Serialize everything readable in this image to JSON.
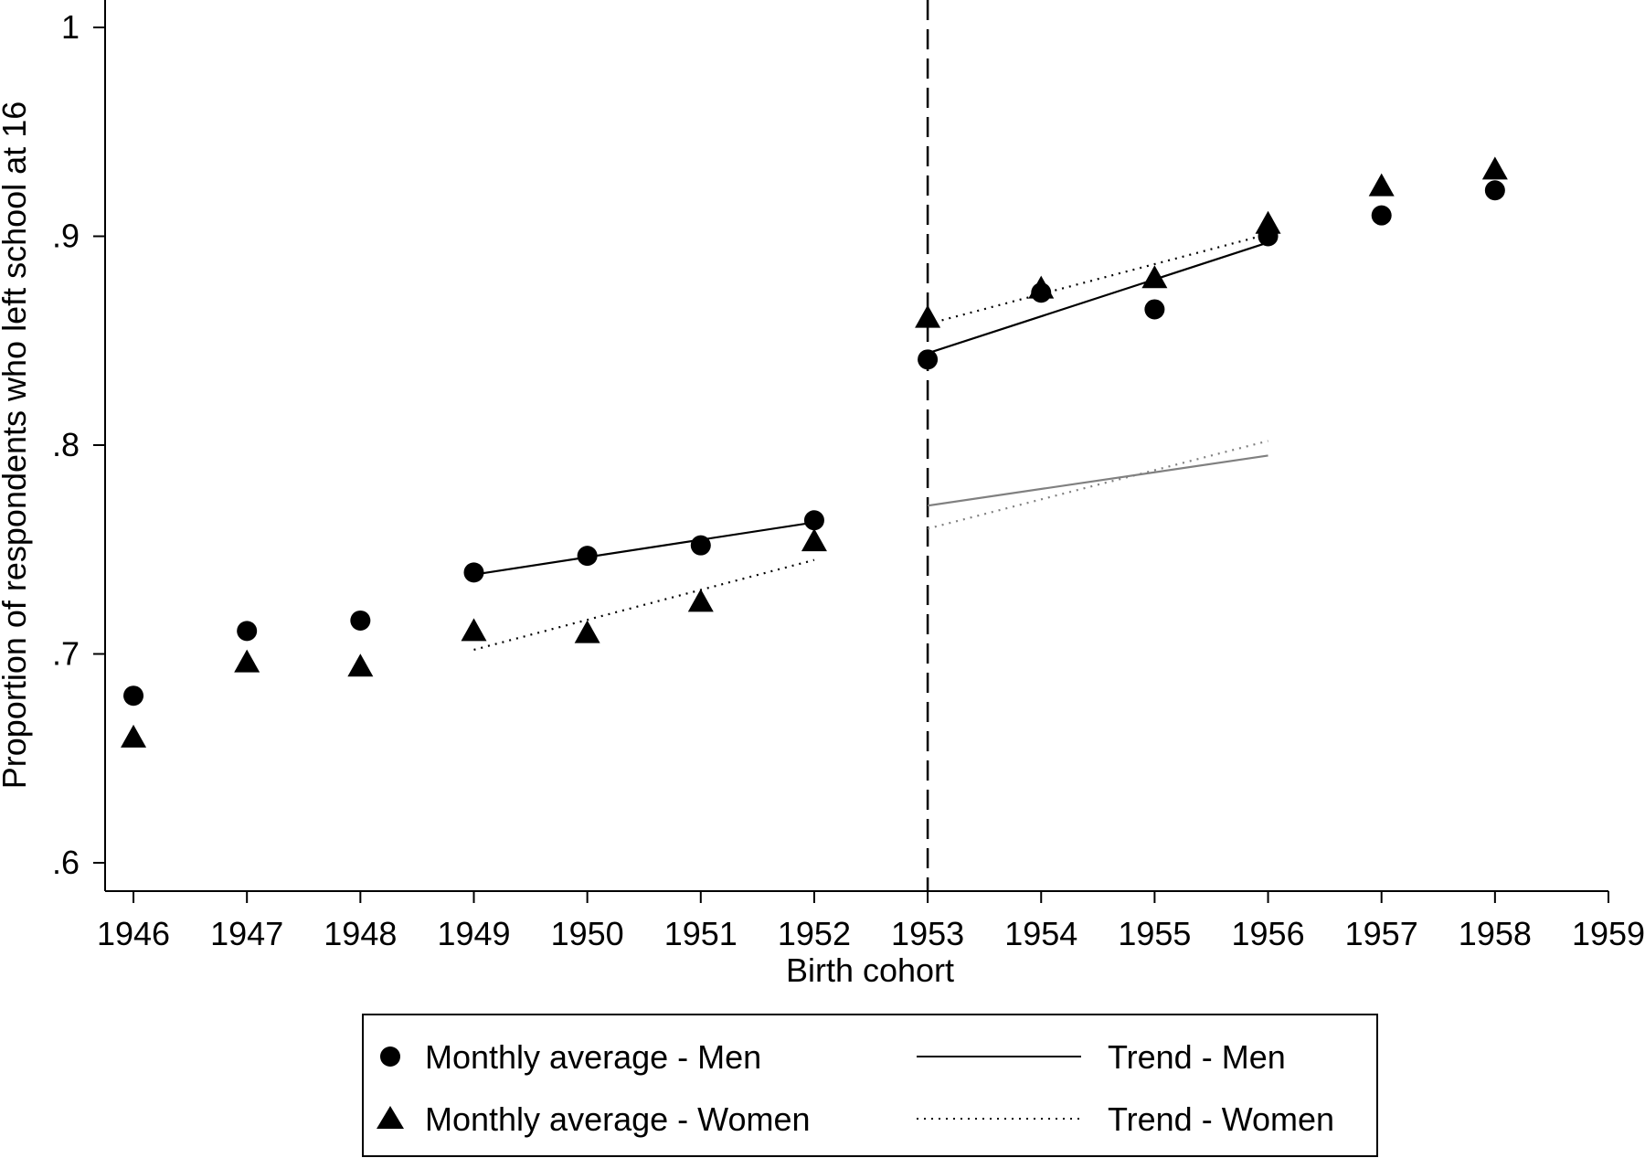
{
  "chart_data": {
    "type": "scatter",
    "xlabel": "Birth cohort",
    "ylabel": "Proportion of respondents who left school at 16",
    "xlim": [
      1945.75,
      1959.0
    ],
    "ylim": [
      0.587,
      1.0
    ],
    "x_ticks": [
      1946,
      1947,
      1948,
      1949,
      1950,
      1951,
      1952,
      1953,
      1954,
      1955,
      1956,
      1957,
      1958,
      1959
    ],
    "x_tick_labels": [
      "1946",
      "1947",
      "1948",
      "1949",
      "1950",
      "1951",
      "1952",
      "1953",
      "1954",
      "1955",
      "1956",
      "1957",
      "1958",
      "1959"
    ],
    "y_ticks": [
      0.6,
      0.7,
      0.8,
      0.9,
      1.0
    ],
    "y_tick_labels": [
      ".6",
      ".7",
      ".8",
      ".9",
      "1"
    ],
    "grid": false,
    "cutoff_line": {
      "x": 1953,
      "style": "dashed"
    },
    "legend": {
      "placement": "bottom",
      "columns": 2
    },
    "series": [
      {
        "name": "Monthly average - Men",
        "kind": "points",
        "marker": "circle",
        "color": "#000000",
        "x": [
          1946,
          1947,
          1948,
          1949,
          1950,
          1951,
          1952,
          1953,
          1954,
          1955,
          1956,
          1957,
          1958
        ],
        "y": [
          0.68,
          0.711,
          0.716,
          0.739,
          0.747,
          0.752,
          0.764,
          0.841,
          0.873,
          0.865,
          0.9,
          0.91,
          0.922
        ]
      },
      {
        "name": "Monthly average - Women",
        "kind": "points",
        "marker": "triangle",
        "color": "#000000",
        "x": [
          1946,
          1947,
          1948,
          1949,
          1950,
          1951,
          1952,
          1953,
          1954,
          1955,
          1956,
          1957,
          1958
        ],
        "y": [
          0.66,
          0.696,
          0.694,
          0.711,
          0.71,
          0.725,
          0.754,
          0.861,
          0.875,
          0.88,
          0.906,
          0.924,
          0.932
        ]
      },
      {
        "name": "Trend - Men",
        "kind": "line",
        "style": "solid",
        "color": "#000000",
        "segments": [
          {
            "x": [
              1949,
              1952
            ],
            "y": [
              0.738,
              0.763
            ]
          },
          {
            "x": [
              1953,
              1956
            ],
            "y": [
              0.844,
              0.897
            ]
          }
        ]
      },
      {
        "name": "Trend - Women",
        "kind": "line",
        "style": "dotted",
        "color": "#000000",
        "segments": [
          {
            "x": [
              1949,
              1952
            ],
            "y": [
              0.702,
              0.745
            ]
          },
          {
            "x": [
              1953,
              1956
            ],
            "y": [
              0.858,
              0.901
            ]
          }
        ]
      },
      {
        "kind": "line",
        "style": "solid",
        "color": "#808080",
        "segments": [
          {
            "x": [
              1953,
              1956
            ],
            "y": [
              0.771,
              0.795
            ]
          }
        ]
      },
      {
        "kind": "line",
        "style": "dotted",
        "color": "#808080",
        "segments": [
          {
            "x": [
              1953,
              1956
            ],
            "y": [
              0.76,
              0.802
            ]
          }
        ]
      }
    ]
  }
}
